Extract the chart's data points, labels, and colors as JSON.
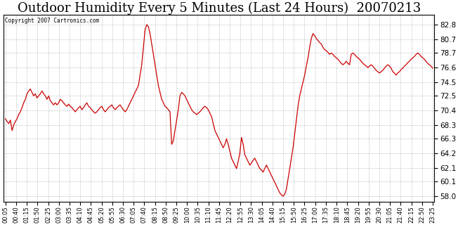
{
  "title": "Outdoor Humidity Every 5 Minutes (Last 24 Hours)  20070213",
  "copyright": "Copyright 2007 Cartronics.com",
  "yticks": [
    58.0,
    60.1,
    62.1,
    64.2,
    66.3,
    68.3,
    70.4,
    72.5,
    74.5,
    76.6,
    78.7,
    80.7,
    82.8
  ],
  "ylim": [
    57.2,
    84.2
  ],
  "line_color": "#cc0000",
  "bg_color": "#ffffff",
  "grid_color": "#999999",
  "title_fontsize": 13,
  "x_labels": [
    "00:05",
    "00:40",
    "01:15",
    "01:50",
    "02:25",
    "03:00",
    "03:35",
    "04:10",
    "04:45",
    "05:20",
    "05:55",
    "06:30",
    "07:05",
    "07:40",
    "08:15",
    "08:50",
    "09:25",
    "10:00",
    "10:35",
    "11:10",
    "11:45",
    "12:20",
    "12:55",
    "13:30",
    "14:05",
    "14:40",
    "15:15",
    "15:50",
    "16:25",
    "17:00",
    "17:35",
    "18:10",
    "18:45",
    "19:20",
    "19:55",
    "20:30",
    "21:05",
    "21:40",
    "22:15",
    "22:50",
    "23:25"
  ],
  "y_values": [
    69.2,
    68.8,
    68.5,
    69.0,
    67.5,
    68.3,
    68.8,
    69.2,
    69.8,
    70.2,
    70.8,
    71.5,
    72.0,
    72.8,
    73.2,
    73.5,
    73.0,
    72.5,
    72.8,
    72.2,
    72.5,
    72.8,
    73.2,
    72.8,
    72.5,
    72.0,
    72.5,
    71.8,
    71.5,
    71.2,
    71.5,
    71.2,
    71.5,
    72.0,
    71.8,
    71.5,
    71.2,
    71.0,
    71.3,
    71.0,
    70.8,
    70.5,
    70.2,
    70.5,
    70.8,
    71.0,
    70.5,
    70.8,
    71.2,
    71.5,
    71.0,
    70.8,
    70.5,
    70.2,
    70.0,
    70.2,
    70.5,
    70.8,
    71.0,
    70.5,
    70.2,
    70.5,
    70.8,
    71.0,
    71.2,
    70.8,
    70.5,
    70.8,
    71.0,
    71.2,
    70.8,
    70.5,
    70.2,
    70.5,
    71.0,
    71.5,
    72.0,
    72.5,
    73.0,
    73.5,
    74.0,
    75.5,
    77.0,
    79.5,
    82.0,
    82.8,
    82.5,
    81.5,
    80.0,
    78.5,
    77.0,
    75.5,
    74.0,
    73.0,
    72.0,
    71.5,
    71.0,
    70.8,
    70.5,
    70.2,
    65.5,
    66.0,
    67.5,
    69.0,
    70.5,
    72.5,
    73.0,
    72.8,
    72.5,
    72.0,
    71.5,
    71.0,
    70.5,
    70.2,
    70.0,
    69.8,
    70.0,
    70.2,
    70.5,
    70.8,
    71.0,
    70.8,
    70.5,
    70.0,
    69.5,
    68.5,
    67.5,
    67.0,
    66.5,
    66.0,
    65.5,
    65.0,
    65.5,
    66.3,
    65.5,
    64.5,
    63.5,
    63.0,
    62.5,
    62.0,
    63.0,
    64.2,
    66.5,
    65.5,
    64.0,
    63.5,
    63.0,
    62.5,
    62.8,
    63.2,
    63.5,
    63.0,
    62.5,
    62.0,
    61.8,
    61.5,
    62.0,
    62.5,
    62.0,
    61.5,
    61.0,
    60.5,
    60.0,
    59.5,
    59.0,
    58.5,
    58.2,
    58.0,
    58.3,
    59.0,
    60.5,
    62.0,
    63.5,
    65.0,
    67.0,
    69.0,
    71.0,
    72.5,
    73.5,
    74.5,
    75.5,
    76.8,
    78.0,
    79.5,
    80.8,
    81.5,
    81.2,
    80.8,
    80.5,
    80.2,
    80.0,
    79.5,
    79.2,
    79.0,
    78.8,
    78.5,
    78.7,
    78.5,
    78.2,
    78.0,
    77.8,
    77.5,
    77.2,
    77.0,
    77.2,
    77.5,
    77.2,
    77.0,
    78.5,
    78.7,
    78.5,
    78.2,
    78.0,
    77.8,
    77.5,
    77.2,
    77.0,
    76.8,
    76.6,
    76.8,
    77.0,
    76.8,
    76.5,
    76.2,
    76.0,
    75.8,
    76.0,
    76.2,
    76.5,
    76.8,
    77.0,
    76.8,
    76.5,
    76.0,
    75.8,
    75.5,
    75.8,
    76.0,
    76.3,
    76.5,
    76.8,
    77.0,
    77.3,
    77.5,
    77.8,
    78.0,
    78.2,
    78.5,
    78.7,
    78.5,
    78.2,
    78.0,
    77.8,
    77.5,
    77.2,
    77.0,
    76.8,
    76.5
  ]
}
